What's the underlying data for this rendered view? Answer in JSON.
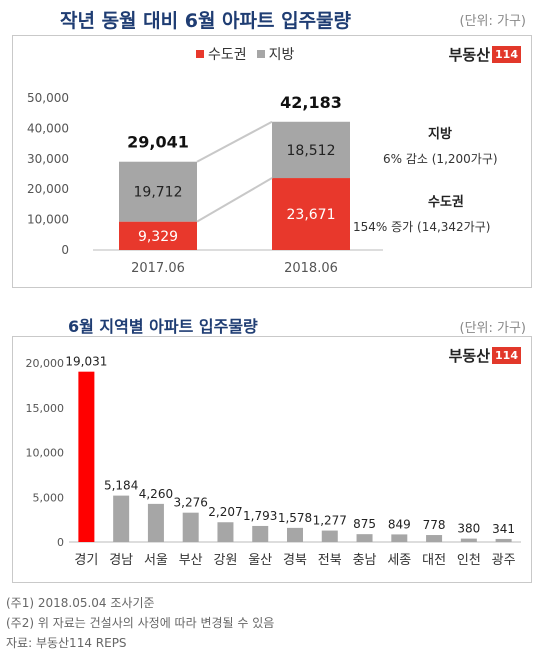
{
  "top": {
    "title": "작년 동월 대비 6월 아파트 입주물량",
    "unit": "(단위: 가구)",
    "logo_text": "부동산",
    "logo_box": "114",
    "legend": [
      {
        "label": "수도권",
        "color": "#e8382c"
      },
      {
        "label": "지방",
        "color": "#a6a6a6"
      }
    ],
    "annotations": {
      "region_title": "지방",
      "region_change": "6% 감소 (1,200가구)",
      "capital_title": "수도권",
      "capital_change": "154% 증가 (14,342가구)"
    }
  },
  "bottom": {
    "title": "6월 지역별 아파트 입주물량",
    "unit": "(단위: 가구)",
    "logo_text": "부동산",
    "logo_box": "114"
  },
  "footer": {
    "note1": "(주1) 2018.05.04 조사기준",
    "note2": "(주2) 위 자료는 건설사의 사정에 따라 변경될 수 있음",
    "source": "자료: 부동산114 REPS"
  },
  "chart_data": [
    {
      "type": "bar",
      "stacked": true,
      "title": "작년 동월 대비 6월 아파트 입주물량",
      "categories": [
        "2017.06",
        "2018.06"
      ],
      "series": [
        {
          "name": "수도권",
          "values": [
            9329,
            23671
          ],
          "labels": [
            "9,329",
            "23,671"
          ],
          "color": "#e8382c"
        },
        {
          "name": "지방",
          "values": [
            19712,
            18512
          ],
          "labels": [
            "19,712",
            "18,512"
          ],
          "color": "#a6a6a6"
        }
      ],
      "totals": [
        29041,
        42183
      ],
      "total_labels": [
        "29,041",
        "42,183"
      ],
      "ylim": [
        0,
        50000
      ],
      "yticks": [
        0,
        10000,
        20000,
        30000,
        40000,
        50000
      ],
      "ytick_labels": [
        "0",
        "10,000",
        "20,000",
        "30,000",
        "40,000",
        "50,000"
      ],
      "legend_position": "top",
      "grid": false
    },
    {
      "type": "bar",
      "title": "6월 지역별 아파트 입주물량",
      "categories": [
        "경기",
        "경남",
        "서울",
        "부산",
        "강원",
        "울산",
        "경북",
        "전북",
        "충남",
        "세종",
        "대전",
        "인천",
        "광주"
      ],
      "values": [
        19031,
        5184,
        4260,
        3276,
        2207,
        1793,
        1578,
        1277,
        875,
        849,
        778,
        380,
        341
      ],
      "value_labels": [
        "19,031",
        "5,184",
        "4,260",
        "3,276",
        "2,207",
        "1,793",
        "1,578",
        "1,277",
        "875",
        "849",
        "778",
        "380",
        "341"
      ],
      "colors": [
        "#ff0000",
        "#a6a6a6",
        "#a6a6a6",
        "#a6a6a6",
        "#a6a6a6",
        "#a6a6a6",
        "#a6a6a6",
        "#a6a6a6",
        "#a6a6a6",
        "#a6a6a6",
        "#a6a6a6",
        "#a6a6a6",
        "#a6a6a6"
      ],
      "ylim": [
        0,
        20000
      ],
      "yticks": [
        0,
        5000,
        10000,
        15000,
        20000
      ],
      "ytick_labels": [
        "0",
        "5,000",
        "10,000",
        "15,000",
        "20,000"
      ],
      "grid": false
    }
  ]
}
